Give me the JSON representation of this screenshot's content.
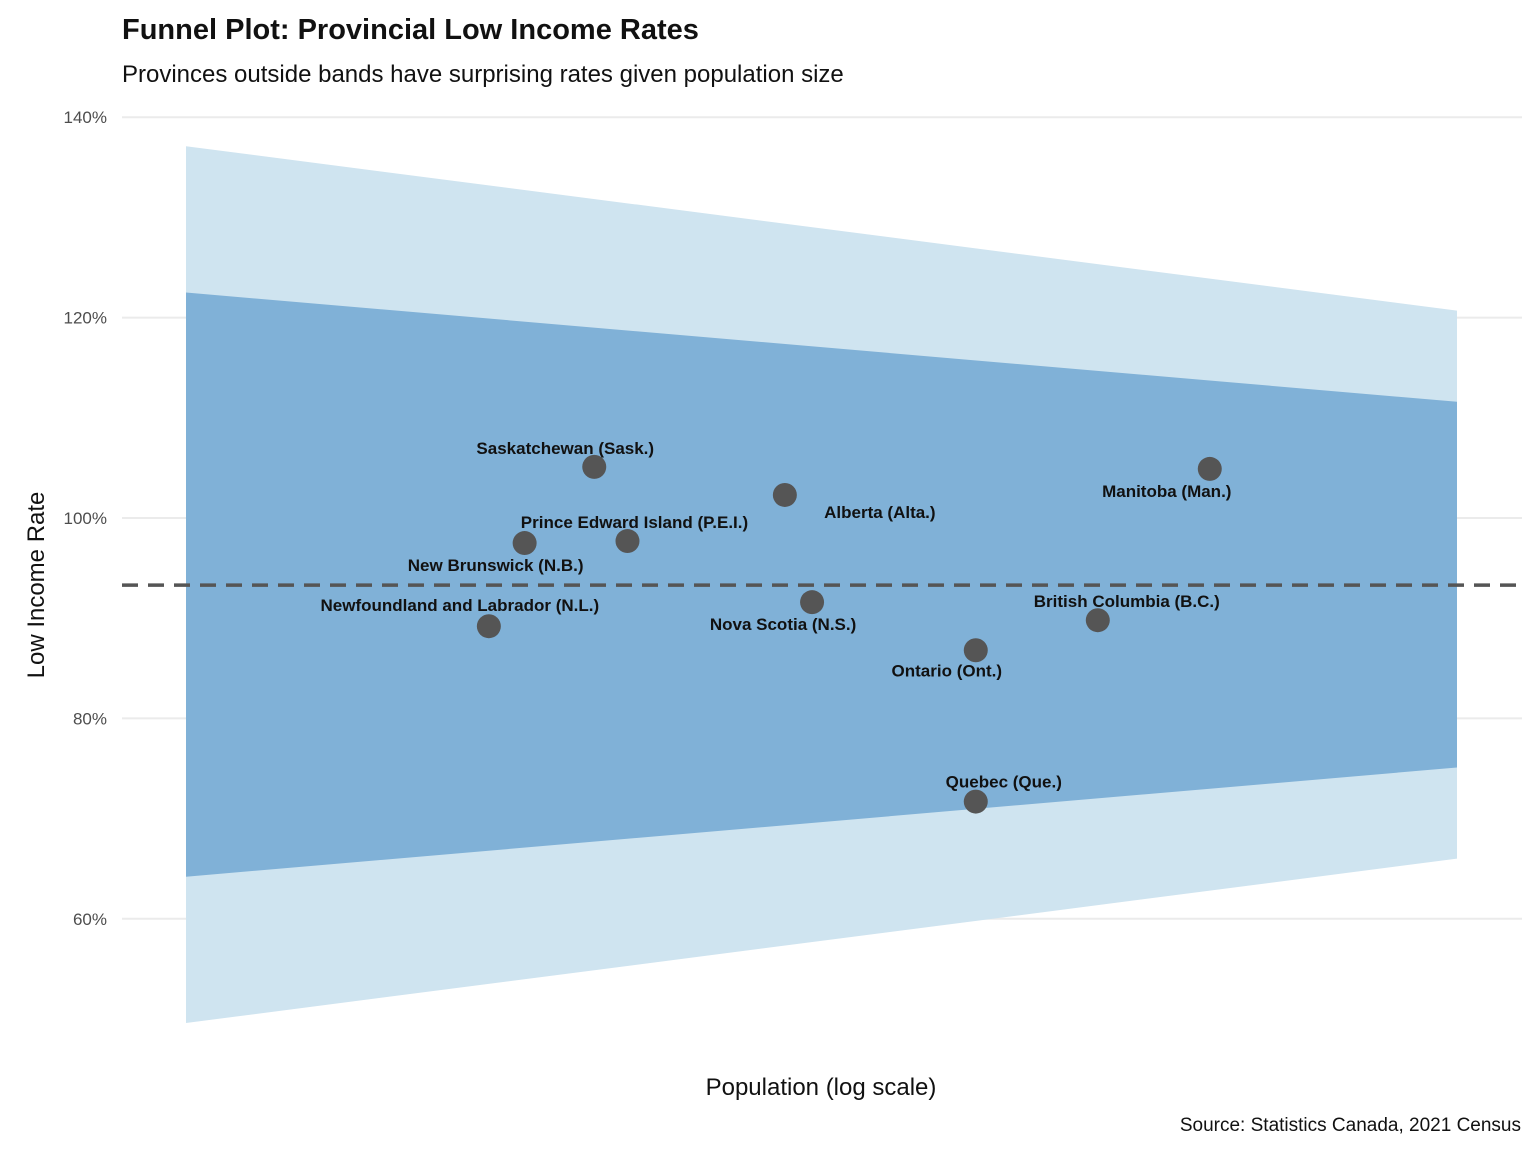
{
  "chart_data": {
    "type": "scatter",
    "title": "Funnel Plot: Provincial Low Income Rates",
    "subtitle": "Provinces outside bands have surprising rates given population size",
    "xlabel": "Population (log scale)",
    "ylabel": "Low Income Rate",
    "caption": "Source: Statistics Canada, 2021 Census",
    "x_scale": "log",
    "x_tick_labels_shown": false,
    "xlim": [
      100000,
      15000000
    ],
    "ylim": [
      45,
      142
    ],
    "y_ticks": [
      60,
      80,
      100,
      120,
      140
    ],
    "y_tick_labels": [
      "60%",
      "80%",
      "100%",
      "120%",
      "140%"
    ],
    "grid": "horizontal major",
    "reference_line": {
      "y": 93.3,
      "style": "dashed",
      "color": "#555555"
    },
    "bands": [
      {
        "level": "outer",
        "color": "#cfe4f0",
        "x": [
          100000,
          15000000
        ],
        "upper": [
          137.1,
          120.7
        ],
        "lower": [
          49.6,
          66.0
        ]
      },
      {
        "level": "inner",
        "color": "#80b1d7",
        "x": [
          100000,
          15000000
        ],
        "upper": [
          122.5,
          111.6
        ],
        "lower": [
          64.2,
          75.1
        ]
      }
    ],
    "point_color": "#555555",
    "points": [
      {
        "label": "Newfoundland and Labrador (N.L.)",
        "x": 330000,
        "y": 89.2
      },
      {
        "label": "New Brunswick (N.B.)",
        "x": 380000,
        "y": 97.5
      },
      {
        "label": "Saskatchewan (Sask.)",
        "x": 500000,
        "y": 105.1
      },
      {
        "label": "Prince Edward Island (P.E.I.)",
        "x": 570000,
        "y": 97.7
      },
      {
        "label": "Alberta (Alta.)",
        "x": 1060000,
        "y": 102.3
      },
      {
        "label": "Nova Scotia (N.S.)",
        "x": 1180000,
        "y": 91.6
      },
      {
        "label": "Ontario (Ont.)",
        "x": 2250000,
        "y": 86.8
      },
      {
        "label": "Quebec (Que.)",
        "x": 2250000,
        "y": 71.7
      },
      {
        "label": "British Columbia (B.C.)",
        "x": 3640000,
        "y": 89.8
      },
      {
        "label": "Manitoba (Man.)",
        "x": 5660000,
        "y": 104.9
      }
    ]
  }
}
